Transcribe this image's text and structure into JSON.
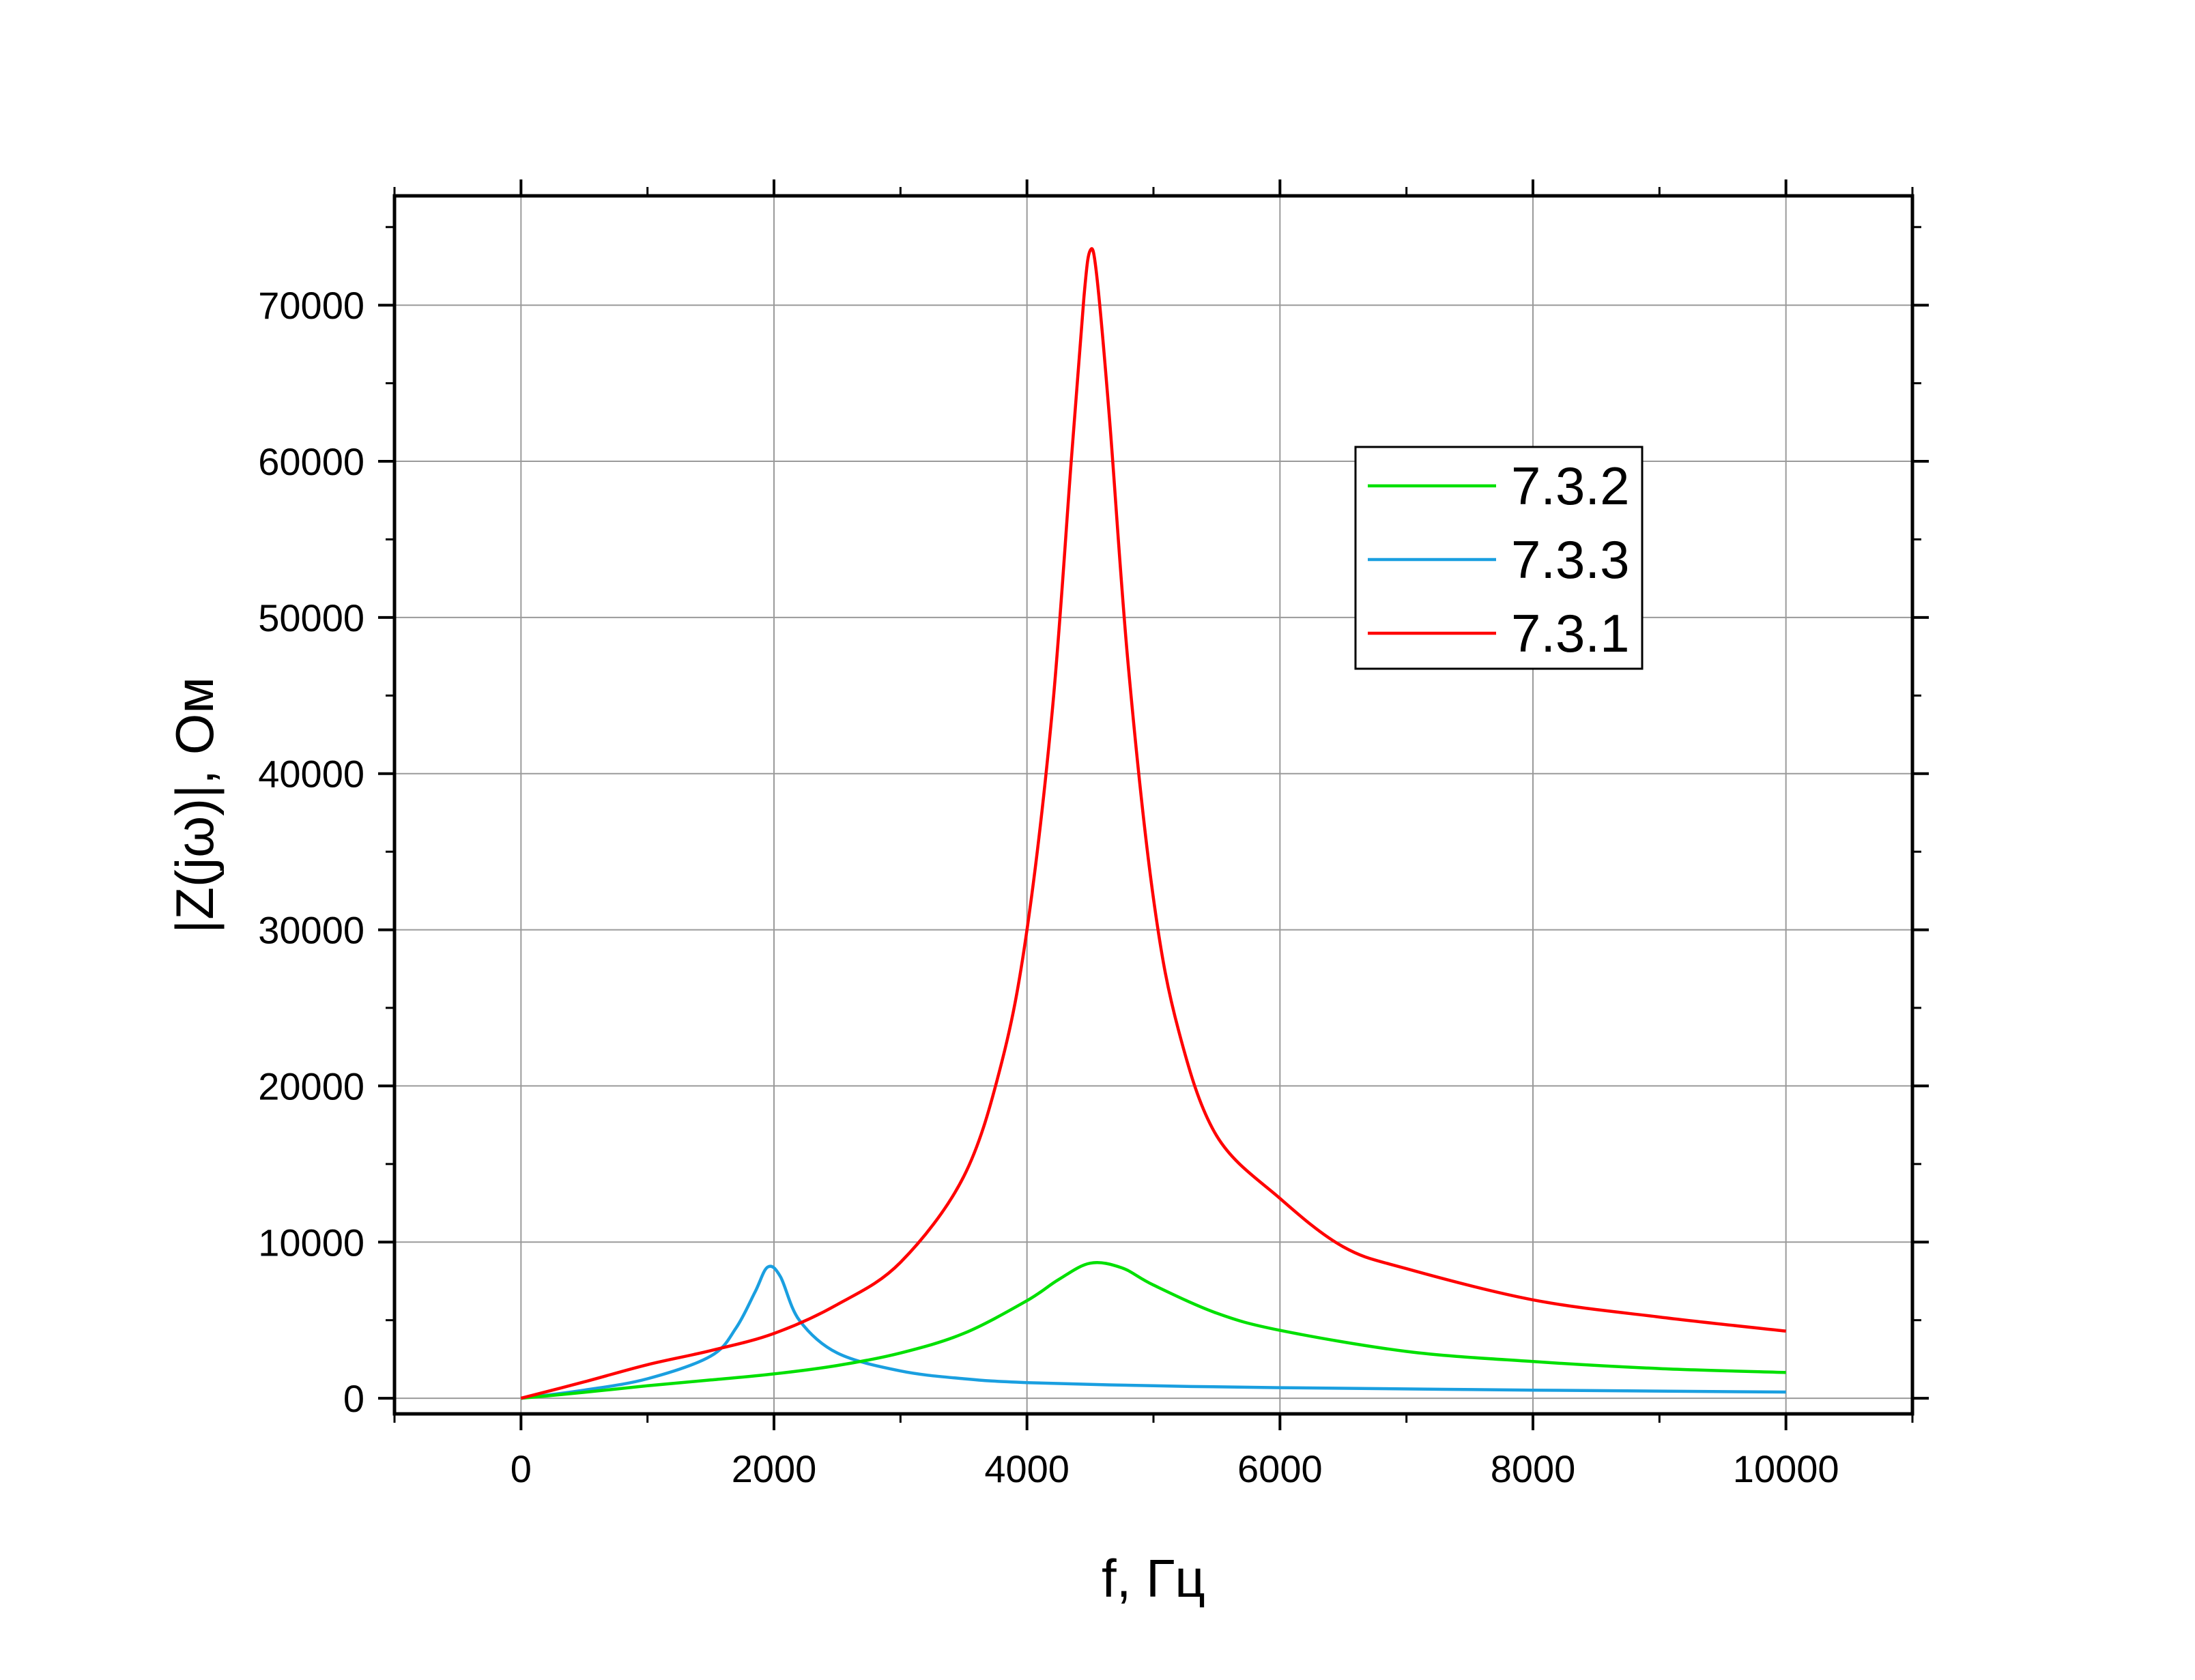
{
  "chart_data": {
    "type": "line",
    "title": "",
    "xlabel": "f, Гц",
    "ylabel": "|Z(jω)|, Ом",
    "xlim": [
      -1000,
      11000
    ],
    "ylim": [
      -1000,
      77000
    ],
    "xticks": [
      0,
      2000,
      4000,
      6000,
      8000,
      10000
    ],
    "yticks": [
      0,
      10000,
      20000,
      30000,
      40000,
      50000,
      60000,
      70000
    ],
    "xtick_labels": [
      "0",
      "2000",
      "4000",
      "6000",
      "8000",
      "10000"
    ],
    "ytick_labels": [
      "0",
      "10000",
      "20000",
      "30000",
      "40000",
      "50000",
      "60000",
      "70000"
    ],
    "grid": true,
    "legend_position": "top-right",
    "series": [
      {
        "name": "7.3.2",
        "color": "#00e000",
        "x": [
          0,
          500,
          1000,
          1500,
          2000,
          2500,
          3000,
          3500,
          4000,
          4250,
          4500,
          4750,
          5000,
          5500,
          6000,
          7000,
          8000,
          9000,
          10000
        ],
        "y": [
          0,
          380,
          800,
          1170,
          1560,
          2100,
          2900,
          4150,
          6250,
          7600,
          8650,
          8350,
          7250,
          5450,
          4350,
          3000,
          2350,
          1900,
          1650
        ]
      },
      {
        "name": "7.3.3",
        "color": "#1a9fe0",
        "x": [
          0,
          500,
          1000,
          1500,
          1700,
          1850,
          1950,
          2050,
          2200,
          2500,
          3000,
          3500,
          4000,
          5000,
          6000,
          8000,
          10000
        ],
        "y": [
          0,
          520,
          1250,
          2700,
          4500,
          6800,
          8400,
          7800,
          5000,
          2900,
          1750,
          1250,
          1000,
          800,
          680,
          520,
          400
        ]
      },
      {
        "name": "7.3.1",
        "color": "#ff0000",
        "x": [
          0,
          500,
          1000,
          1500,
          2000,
          2500,
          3000,
          3500,
          3800,
          4000,
          4200,
          4350,
          4450,
          4500,
          4550,
          4650,
          4800,
          5000,
          5200,
          5500,
          6000,
          6500,
          7000,
          8000,
          9000,
          10000
        ],
        "y": [
          0,
          1050,
          2150,
          3050,
          4150,
          6000,
          8700,
          14200,
          21500,
          30000,
          44000,
          60000,
          70500,
          73500,
          72000,
          63000,
          47000,
          32000,
          23500,
          16800,
          12800,
          9700,
          8300,
          6300,
          5200,
          4300
        ]
      }
    ]
  }
}
